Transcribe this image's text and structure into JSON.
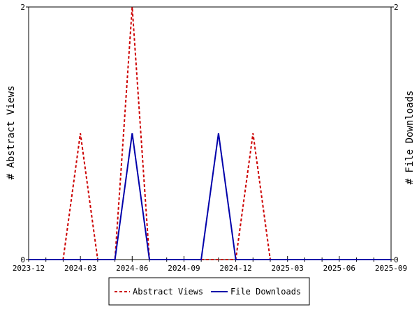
{
  "chart_data": {
    "type": "line",
    "title": "",
    "xlabel": "",
    "ylabel_left": "# Abstract Views",
    "ylabel_right": "# File Downloads",
    "ylim": [
      0,
      2
    ],
    "y_ticks": [
      "0",
      "2"
    ],
    "x_ticks": [
      "2023-12",
      "2024-03",
      "2024-06",
      "2024-09",
      "2024-12",
      "2025-03",
      "2025-06",
      "2025-09"
    ],
    "x_minor_months": [
      "2023-12",
      "2024-01",
      "2024-02",
      "2024-03",
      "2024-04",
      "2024-05",
      "2024-06",
      "2024-07",
      "2024-08",
      "2024-09",
      "2024-10",
      "2024-11",
      "2024-12",
      "2025-01",
      "2025-02",
      "2025-03",
      "2025-04",
      "2025-05",
      "2025-06",
      "2025-07",
      "2025-08",
      "2025-09"
    ],
    "x": [
      "2023-12",
      "2024-01",
      "2024-02",
      "2024-03",
      "2024-04",
      "2024-05",
      "2024-06",
      "2024-07",
      "2024-08",
      "2024-09",
      "2024-10",
      "2024-11",
      "2024-12",
      "2025-01",
      "2025-02",
      "2025-03",
      "2025-04",
      "2025-05",
      "2025-06",
      "2025-07",
      "2025-08",
      "2025-09"
    ],
    "series": [
      {
        "name": "Abstract Views",
        "color": "#cc0000",
        "style": "dashed",
        "values": [
          0,
          0,
          0,
          1,
          0,
          0,
          2,
          0,
          0,
          0,
          0,
          0,
          0,
          1,
          0,
          0,
          0,
          0,
          0,
          0,
          0,
          0
        ]
      },
      {
        "name": "File Downloads",
        "color": "#0000aa",
        "style": "solid",
        "values": [
          0,
          0,
          0,
          0,
          0,
          0,
          1,
          0,
          0,
          0,
          0,
          1,
          0,
          0,
          0,
          0,
          0,
          0,
          0,
          0,
          0,
          0
        ]
      }
    ],
    "grid": false,
    "legend_position": "bottom-center"
  }
}
